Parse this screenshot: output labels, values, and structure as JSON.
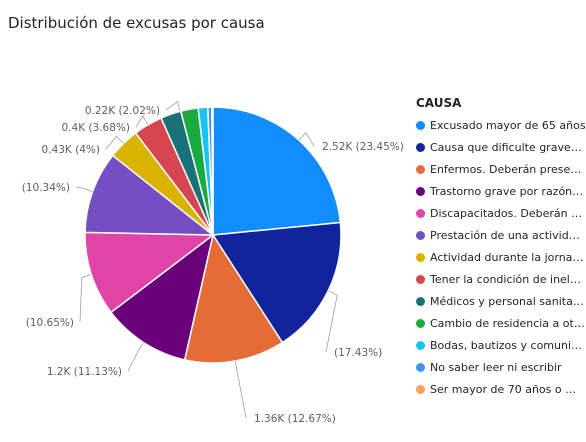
{
  "title": "Distribución de excusas por causa",
  "chart_data": {
    "type": "pie",
    "title": "Distribución de excusas por causa",
    "legend_title": "CAUSA",
    "legend_position": "right",
    "slices": [
      {
        "name": "Excusado mayor de 65 años",
        "percent": 23.45,
        "label": "2.52K (23.45%)",
        "color": "#118DFF"
      },
      {
        "name": "Causa que dificulte graveme...",
        "percent": 17.43,
        "label": "(17.43%)",
        "color": "#12239E"
      },
      {
        "name": "Enfermos. Deberán presenta...",
        "percent": 12.67,
        "label": "1.36K (12.67%)",
        "color": "#E66C37"
      },
      {
        "name": "Trastorno grave por razón d...",
        "percent": 11.13,
        "label": "1.2K (11.13%)",
        "color": "#6B007B"
      },
      {
        "name": "Discapacitados. Deberán ap...",
        "percent": 10.65,
        "label": "(10.65%)",
        "color": "#E044A7"
      },
      {
        "name": "Prestación de una actividad ...",
        "percent": 10.34,
        "label": "(10.34%)",
        "color": "#744EC2"
      },
      {
        "name": "Actividad durante la jornada...",
        "percent": 4.0,
        "label": "0.43K (4%)",
        "color": "#D9B300"
      },
      {
        "name": "Tener la condición de inelegi...",
        "percent": 3.68,
        "label": "0.4K (3.68%)",
        "color": "#D64550"
      },
      {
        "name": "Médicos y personal sanitario...",
        "percent": 2.6,
        "label": "",
        "color": "#197278"
      },
      {
        "name": "Cambio de residencia a otra ...",
        "percent": 2.2,
        "label": "",
        "color": "#1AAB40"
      },
      {
        "name": "Bodas, bautizos y comuniones",
        "percent": 1.2,
        "label": "",
        "color": "#15C6F4"
      },
      {
        "name": "No saber leer ni escribir",
        "percent": 0.5,
        "label": "",
        "color": "#4092FF"
      },
      {
        "name": "Ser mayor de 70 años o men...",
        "percent": 0.15,
        "label": "",
        "color": "#FFA058"
      }
    ],
    "extra_labels": [
      {
        "label": "0.22K (2.02%)"
      }
    ]
  }
}
